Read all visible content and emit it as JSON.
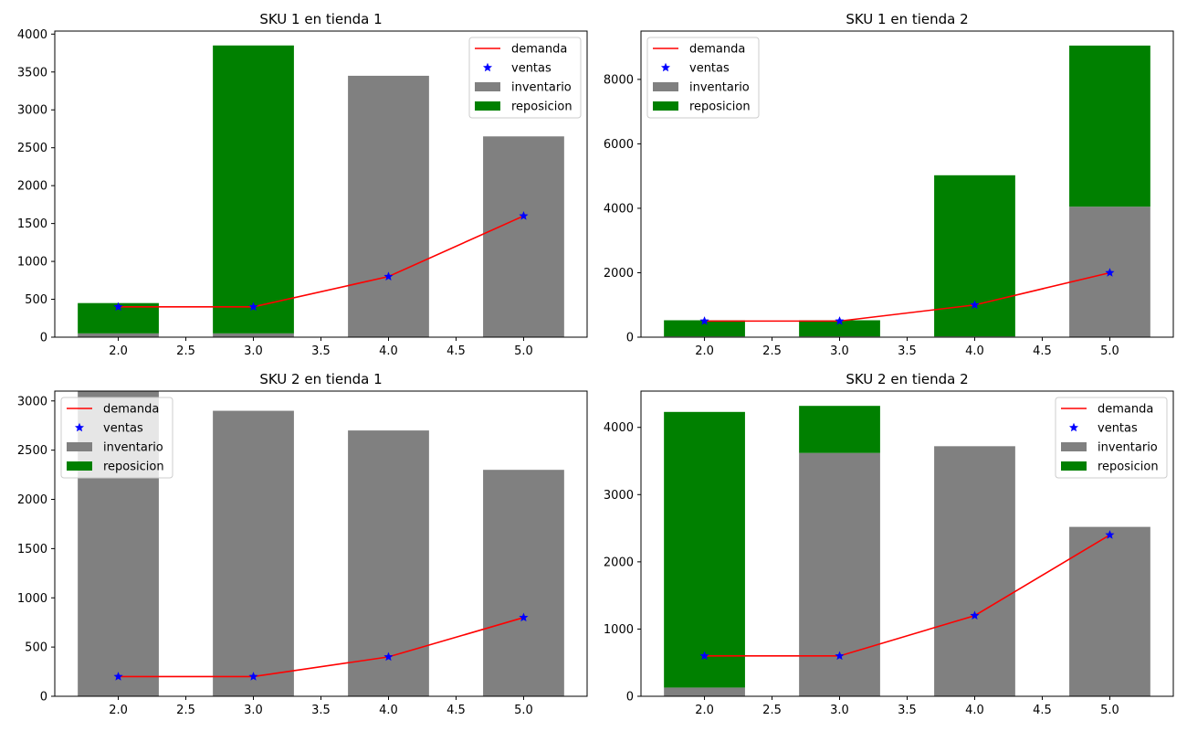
{
  "colors": {
    "demanda": "#ff0000",
    "ventas": "#0000ff",
    "inventario": "#808080",
    "reposicion": "#008000"
  },
  "legend_labels": [
    "demanda",
    "ventas",
    "inventario",
    "reposicion"
  ],
  "chart_data": [
    {
      "type": "bar",
      "title": "SKU 1 en tienda 1",
      "legend_position": "upper right",
      "xlim": [
        1.53,
        5.47
      ],
      "ylim": [
        0,
        4040
      ],
      "xticks": [
        "2.0",
        "2.5",
        "3.0",
        "3.5",
        "4.0",
        "4.5",
        "5.0"
      ],
      "yticks": [
        "0",
        "500",
        "1000",
        "1500",
        "2000",
        "2500",
        "3000",
        "3500",
        "4000"
      ],
      "x": [
        2,
        3,
        4,
        5
      ],
      "series": [
        {
          "name": "inventario",
          "kind": "bar",
          "values": [
            50,
            50,
            3450,
            2650
          ]
        },
        {
          "name": "reposicion",
          "kind": "bar_stacked",
          "values": [
            400,
            3800,
            0,
            0
          ]
        },
        {
          "name": "demanda",
          "kind": "line",
          "values": [
            400,
            400,
            800,
            1600
          ]
        },
        {
          "name": "ventas",
          "kind": "marker",
          "values": [
            400,
            400,
            800,
            1600
          ]
        }
      ]
    },
    {
      "type": "bar",
      "title": "SKU 1 en tienda 2",
      "legend_position": "upper left",
      "xlim": [
        1.53,
        5.47
      ],
      "ylim": [
        0,
        9500
      ],
      "xticks": [
        "2.0",
        "2.5",
        "3.0",
        "3.5",
        "4.0",
        "4.5",
        "5.0"
      ],
      "yticks": [
        "0",
        "2000",
        "4000",
        "6000",
        "8000"
      ],
      "x": [
        2,
        3,
        4,
        5
      ],
      "series": [
        {
          "name": "inventario",
          "kind": "bar",
          "values": [
            25,
            25,
            25,
            4050
          ]
        },
        {
          "name": "reposicion",
          "kind": "bar_stacked",
          "values": [
            500,
            500,
            5000,
            5000
          ]
        },
        {
          "name": "demanda",
          "kind": "line",
          "values": [
            500,
            500,
            1000,
            2000
          ]
        },
        {
          "name": "ventas",
          "kind": "marker",
          "values": [
            500,
            500,
            1000,
            2000
          ]
        }
      ]
    },
    {
      "type": "bar",
      "title": "SKU 2 en tienda 1",
      "legend_position": "upper left",
      "xlim": [
        1.53,
        5.47
      ],
      "ylim": [
        0,
        3100
      ],
      "xticks": [
        "2.0",
        "2.5",
        "3.0",
        "3.5",
        "4.0",
        "4.5",
        "5.0"
      ],
      "yticks": [
        "0",
        "500",
        "1000",
        "1500",
        "2000",
        "2500",
        "3000"
      ],
      "x": [
        2,
        3,
        4,
        5
      ],
      "series": [
        {
          "name": "inventario",
          "kind": "bar",
          "values": [
            3100,
            2900,
            2700,
            2300
          ]
        },
        {
          "name": "reposicion",
          "kind": "bar_stacked",
          "values": [
            0,
            0,
            0,
            0
          ]
        },
        {
          "name": "demanda",
          "kind": "line",
          "values": [
            200,
            200,
            400,
            800
          ]
        },
        {
          "name": "ventas",
          "kind": "marker",
          "values": [
            200,
            200,
            400,
            800
          ]
        }
      ]
    },
    {
      "type": "bar",
      "title": "SKU 2 en tienda 2",
      "legend_position": "upper right",
      "xlim": [
        1.53,
        5.47
      ],
      "ylim": [
        0,
        4540
      ],
      "xticks": [
        "2.0",
        "2.5",
        "3.0",
        "3.5",
        "4.0",
        "4.5",
        "5.0"
      ],
      "yticks": [
        "0",
        "1000",
        "2000",
        "3000",
        "4000"
      ],
      "x": [
        2,
        3,
        4,
        5
      ],
      "series": [
        {
          "name": "inventario",
          "kind": "bar",
          "values": [
            130,
            3620,
            3720,
            2520
          ]
        },
        {
          "name": "reposicion",
          "kind": "bar_stacked",
          "values": [
            4100,
            700,
            0,
            0
          ]
        },
        {
          "name": "demanda",
          "kind": "line",
          "values": [
            600,
            600,
            1200,
            2400
          ]
        },
        {
          "name": "ventas",
          "kind": "marker",
          "values": [
            600,
            600,
            1200,
            2400
          ]
        }
      ]
    }
  ]
}
